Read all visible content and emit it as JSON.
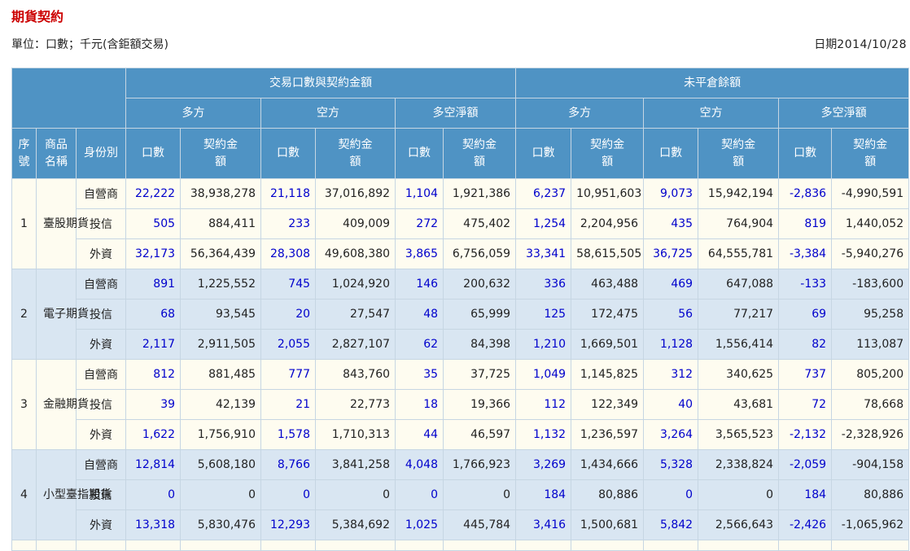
{
  "page": {
    "title": "期貨契約",
    "unit": "單位：口數；千元(含鉅額交易)",
    "date_label": "日期",
    "date_value": "2014/10/28"
  },
  "headers": {
    "group_trading": "交易口數與契約金額",
    "group_oi": "未平倉餘額",
    "long": "多方",
    "short": "空方",
    "net": "多空淨額",
    "seq": "序號",
    "product": "商品名稱",
    "identity": "身份別",
    "contracts": "口數",
    "amount": "契約金額"
  },
  "products": [
    {
      "seq": "1",
      "name": "臺股期貨",
      "rows": [
        {
          "role": "自營商",
          "v": [
            "22,222",
            "38,938,278",
            "21,118",
            "37,016,892",
            "1,104",
            "1,921,386",
            "6,237",
            "10,951,603",
            "9,073",
            "15,942,194",
            "-2,836",
            "-4,990,591"
          ]
        },
        {
          "role": "投信",
          "v": [
            "505",
            "884,411",
            "233",
            "409,009",
            "272",
            "475,402",
            "1,254",
            "2,204,956",
            "435",
            "764,904",
            "819",
            "1,440,052"
          ]
        },
        {
          "role": "外資",
          "v": [
            "32,173",
            "56,364,439",
            "28,308",
            "49,608,380",
            "3,865",
            "6,756,059",
            "33,341",
            "58,615,505",
            "36,725",
            "64,555,781",
            "-3,384",
            "-5,940,276"
          ]
        }
      ]
    },
    {
      "seq": "2",
      "name": "電子期貨",
      "rows": [
        {
          "role": "自營商",
          "v": [
            "891",
            "1,225,552",
            "745",
            "1,024,920",
            "146",
            "200,632",
            "336",
            "463,488",
            "469",
            "647,088",
            "-133",
            "-183,600"
          ]
        },
        {
          "role": "投信",
          "v": [
            "68",
            "93,545",
            "20",
            "27,547",
            "48",
            "65,999",
            "125",
            "172,475",
            "56",
            "77,217",
            "69",
            "95,258"
          ]
        },
        {
          "role": "外資",
          "v": [
            "2,117",
            "2,911,505",
            "2,055",
            "2,827,107",
            "62",
            "84,398",
            "1,210",
            "1,669,501",
            "1,128",
            "1,556,414",
            "82",
            "113,087"
          ]
        }
      ]
    },
    {
      "seq": "3",
      "name": "金融期貨",
      "rows": [
        {
          "role": "自營商",
          "v": [
            "812",
            "881,485",
            "777",
            "843,760",
            "35",
            "37,725",
            "1,049",
            "1,145,825",
            "312",
            "340,625",
            "737",
            "805,200"
          ]
        },
        {
          "role": "投信",
          "v": [
            "39",
            "42,139",
            "21",
            "22,773",
            "18",
            "19,366",
            "112",
            "122,349",
            "40",
            "43,681",
            "72",
            "78,668"
          ]
        },
        {
          "role": "外資",
          "v": [
            "1,622",
            "1,756,910",
            "1,578",
            "1,710,313",
            "44",
            "46,597",
            "1,132",
            "1,236,597",
            "3,264",
            "3,565,523",
            "-2,132",
            "-2,328,926"
          ]
        }
      ]
    },
    {
      "seq": "4",
      "name": "小型臺指期貨",
      "rows": [
        {
          "role": "自營商",
          "v": [
            "12,814",
            "5,608,180",
            "8,766",
            "3,841,258",
            "4,048",
            "1,766,923",
            "3,269",
            "1,434,666",
            "5,328",
            "2,338,824",
            "-2,059",
            "-904,158"
          ]
        },
        {
          "role": "投信",
          "v": [
            "0",
            "0",
            "0",
            "0",
            "0",
            "0",
            "184",
            "80,886",
            "0",
            "0",
            "184",
            "80,886"
          ]
        },
        {
          "role": "外資",
          "v": [
            "13,318",
            "5,830,476",
            "12,293",
            "5,384,692",
            "1,025",
            "445,784",
            "3,416",
            "1,500,681",
            "5,842",
            "2,566,643",
            "-2,426",
            "-1,065,962"
          ]
        }
      ]
    }
  ]
}
